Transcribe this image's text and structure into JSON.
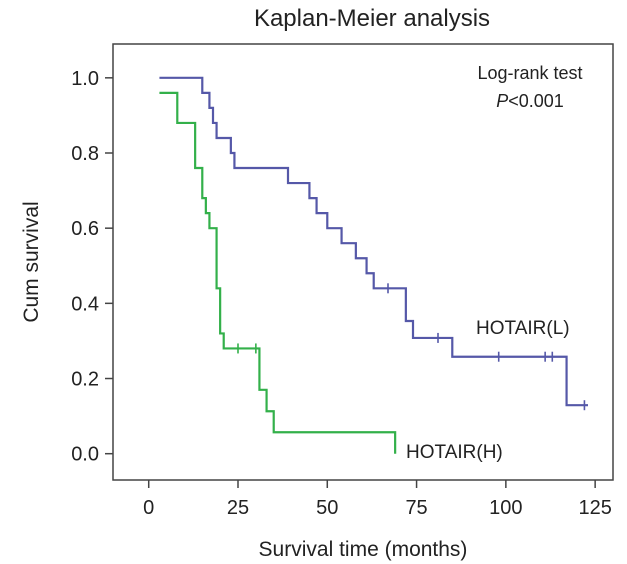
{
  "chart_data": {
    "type": "line",
    "step": true,
    "title": "Kaplan-Meier analysis",
    "xlabel": "Survival time (months)",
    "ylabel": "Cum survival",
    "xlim": [
      -10,
      130
    ],
    "ylim": [
      -0.07,
      1.09
    ],
    "xticks": [
      0,
      25,
      50,
      75,
      100,
      125
    ],
    "yticks": [
      0.0,
      0.2,
      0.4,
      0.6,
      0.8,
      1.0
    ],
    "xtick_labels": [
      "0",
      "25",
      "50",
      "75",
      "100",
      "125"
    ],
    "ytick_labels": [
      "0.0",
      "0.2",
      "0.4",
      "0.6",
      "0.8",
      "1.0"
    ],
    "grid": false,
    "annotation": {
      "line1": "Log-rank test",
      "line2_p": "P",
      "line2_rest": "<0.001"
    },
    "series": [
      {
        "name": "HOTAIR(L)",
        "color": "#5558a8",
        "x": [
          3,
          15,
          17,
          18,
          19,
          23,
          24,
          39,
          45,
          47,
          50,
          54,
          58,
          61,
          63,
          72,
          74,
          85,
          117
        ],
        "y": [
          1.0,
          0.96,
          0.92,
          0.88,
          0.84,
          0.8,
          0.76,
          0.72,
          0.68,
          0.64,
          0.6,
          0.56,
          0.52,
          0.48,
          0.44,
          0.353,
          0.308,
          0.258,
          0.129
        ],
        "end_x": 123,
        "censored_x": [
          67,
          81,
          98,
          111,
          113,
          122
        ],
        "censored_y": [
          0.44,
          0.308,
          0.258,
          0.258,
          0.258,
          0.129
        ]
      },
      {
        "name": "HOTAIR(H)",
        "color": "#33b04a",
        "x": [
          3,
          8,
          13,
          15,
          16,
          17,
          19,
          20,
          21,
          31,
          33,
          35,
          41,
          69
        ],
        "y": [
          0.96,
          0.88,
          0.76,
          0.68,
          0.64,
          0.6,
          0.44,
          0.32,
          0.28,
          0.17,
          0.113,
          0.057,
          0.057,
          0.0
        ],
        "end_x": 69,
        "censored_x": [
          25,
          30
        ],
        "censored_y": [
          0.28,
          0.28
        ]
      }
    ]
  }
}
